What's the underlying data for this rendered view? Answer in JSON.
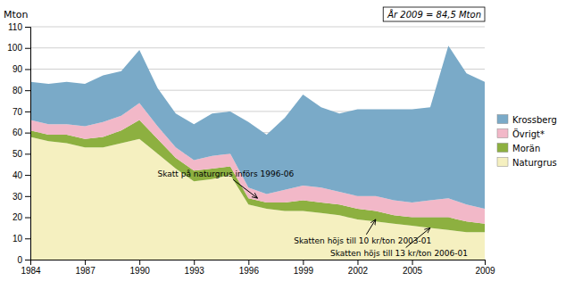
{
  "chart_data": {
    "type": "area",
    "stacked": true,
    "x": [
      1984,
      1985,
      1986,
      1987,
      1988,
      1989,
      1990,
      1991,
      1992,
      1993,
      1994,
      1995,
      1996,
      1997,
      1998,
      1999,
      2000,
      2001,
      2002,
      2003,
      2004,
      2005,
      2006,
      2007,
      2008,
      2009
    ],
    "series": [
      {
        "name": "Naturgrus",
        "color": "#f5f0c0",
        "values": [
          58,
          56,
          55,
          53,
          53,
          55,
          57,
          50,
          43,
          37,
          38,
          40,
          26,
          24,
          23,
          23,
          22,
          21,
          19,
          18,
          17,
          16,
          15,
          14,
          13,
          13
        ]
      },
      {
        "name": "Morän",
        "color": "#8db040",
        "values": [
          3,
          3,
          4,
          4,
          5,
          6,
          9,
          7,
          5,
          5,
          5,
          4,
          3,
          3,
          4,
          5,
          5,
          5,
          5,
          5,
          4,
          4,
          5,
          6,
          5,
          4
        ]
      },
      {
        "name": "Övrigt*",
        "color": "#f2b8c8",
        "values": [
          5,
          5,
          5,
          6,
          7,
          7,
          8,
          6,
          5,
          5,
          6,
          6,
          5,
          4,
          6,
          7,
          7,
          6,
          6,
          7,
          7,
          7,
          8,
          9,
          8,
          7
        ]
      },
      {
        "name": "Krossberg",
        "color": "#7aaac8",
        "values": [
          18,
          19,
          20,
          20,
          22,
          21,
          25,
          18,
          16,
          17,
          20,
          20,
          31,
          28,
          34,
          43,
          38,
          37,
          41,
          41,
          43,
          44,
          44,
          72,
          62,
          60
        ]
      }
    ],
    "xlim": [
      1984,
      2009
    ],
    "xticks": [
      1984,
      1987,
      1990,
      1993,
      1996,
      1999,
      2002,
      2005,
      2009
    ],
    "ylim": [
      0,
      110
    ],
    "yticks": [
      0,
      10,
      20,
      30,
      40,
      50,
      60,
      70,
      80,
      90,
      100,
      110
    ],
    "ylabel": "Mton",
    "grid": true,
    "legend": "right",
    "annotations": [
      {
        "text": "År 2009 = 84,5 Mton"
      },
      {
        "text": "Skatt på naturgrus införs 1996-06",
        "x": 1996.5,
        "y": 29,
        "text_x": 1991.0,
        "text_y": 38
      },
      {
        "text": "Skatten höjs till 10 kr/ton 2003-01",
        "x": 2003.0,
        "y": 19,
        "text_x": 1998.5,
        "text_y": 11
      },
      {
        "text": "Skatten höjs till 13 kr/ton 2006-01",
        "x": 2006.0,
        "y": 15,
        "text_x": 2000.5,
        "text_y": 5
      }
    ]
  }
}
